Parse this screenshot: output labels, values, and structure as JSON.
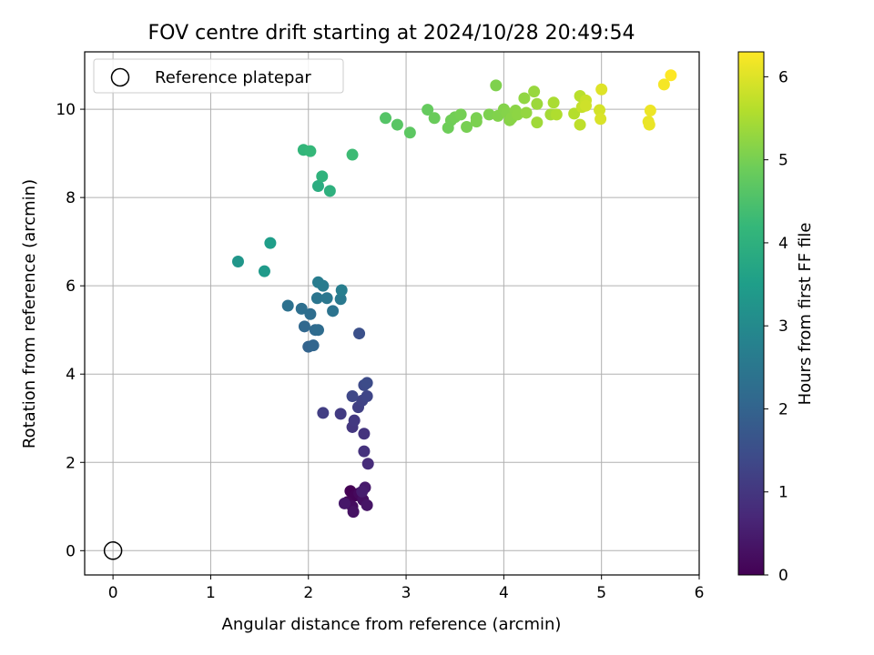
{
  "chart_data": {
    "type": "scatter",
    "title": "FOV centre drift starting at 2024/10/28 20:49:54",
    "xlabel": "Angular distance from reference (arcmin)",
    "ylabel": "Rotation from reference (arcmin)",
    "xlim": [
      -0.29,
      6.0
    ],
    "ylim": [
      -0.55,
      11.3
    ],
    "xticks": [
      "0",
      "1",
      "2",
      "3",
      "4",
      "5",
      "6"
    ],
    "yticks": [
      "0",
      "2",
      "4",
      "6",
      "8",
      "10"
    ],
    "grid": true,
    "legend": {
      "placement": "top-left",
      "entries": [
        "Reference platepar"
      ]
    },
    "reference": {
      "name": "Reference platepar",
      "x": 0,
      "y": 0
    },
    "colorbar": {
      "label": "Hours from first FF file",
      "range": [
        0,
        6.3
      ],
      "ticks": [
        "0",
        "1",
        "2",
        "3",
        "4",
        "5",
        "6"
      ],
      "colormap": "viridis"
    },
    "points": [
      {
        "x": 2.43,
        "y": 1.35,
        "c": 0.0
      },
      {
        "x": 2.48,
        "y": 1.25,
        "c": 0.05
      },
      {
        "x": 2.4,
        "y": 1.1,
        "c": 0.1
      },
      {
        "x": 2.52,
        "y": 1.3,
        "c": 0.15
      },
      {
        "x": 2.45,
        "y": 1.0,
        "c": 0.2
      },
      {
        "x": 2.56,
        "y": 1.15,
        "c": 0.25
      },
      {
        "x": 2.46,
        "y": 0.88,
        "c": 0.3
      },
      {
        "x": 2.6,
        "y": 1.03,
        "c": 0.35
      },
      {
        "x": 2.37,
        "y": 1.07,
        "c": 0.4
      },
      {
        "x": 2.58,
        "y": 1.43,
        "c": 0.45
      },
      {
        "x": 2.55,
        "y": 1.34,
        "c": 0.5
      },
      {
        "x": 2.61,
        "y": 1.97,
        "c": 0.8
      },
      {
        "x": 2.57,
        "y": 2.25,
        "c": 0.9
      },
      {
        "x": 2.57,
        "y": 2.65,
        "c": 0.95
      },
      {
        "x": 2.45,
        "y": 2.8,
        "c": 1.0
      },
      {
        "x": 2.47,
        "y": 2.95,
        "c": 1.05
      },
      {
        "x": 2.33,
        "y": 3.1,
        "c": 1.1
      },
      {
        "x": 2.15,
        "y": 3.12,
        "c": 1.15
      },
      {
        "x": 2.51,
        "y": 3.25,
        "c": 1.2
      },
      {
        "x": 2.55,
        "y": 3.4,
        "c": 1.25
      },
      {
        "x": 2.6,
        "y": 3.5,
        "c": 1.3
      },
      {
        "x": 2.45,
        "y": 3.5,
        "c": 1.35
      },
      {
        "x": 2.57,
        "y": 3.75,
        "c": 1.4
      },
      {
        "x": 2.6,
        "y": 3.8,
        "c": 1.45
      },
      {
        "x": 2.52,
        "y": 4.92,
        "c": 1.55
      },
      {
        "x": 2.0,
        "y": 4.62,
        "c": 2.0
      },
      {
        "x": 2.05,
        "y": 4.65,
        "c": 2.05
      },
      {
        "x": 1.96,
        "y": 5.08,
        "c": 2.1
      },
      {
        "x": 2.07,
        "y": 5.0,
        "c": 2.15
      },
      {
        "x": 2.1,
        "y": 5.0,
        "c": 2.2
      },
      {
        "x": 2.02,
        "y": 5.36,
        "c": 2.25
      },
      {
        "x": 1.93,
        "y": 5.48,
        "c": 2.3
      },
      {
        "x": 1.79,
        "y": 5.55,
        "c": 2.35
      },
      {
        "x": 2.25,
        "y": 5.43,
        "c": 2.4
      },
      {
        "x": 2.09,
        "y": 5.72,
        "c": 2.45
      },
      {
        "x": 2.19,
        "y": 5.72,
        "c": 2.5
      },
      {
        "x": 2.33,
        "y": 5.7,
        "c": 2.55
      },
      {
        "x": 2.15,
        "y": 6.0,
        "c": 2.6
      },
      {
        "x": 2.1,
        "y": 6.08,
        "c": 2.65
      },
      {
        "x": 2.34,
        "y": 5.9,
        "c": 2.7
      },
      {
        "x": 1.28,
        "y": 6.55,
        "c": 3.3
      },
      {
        "x": 1.55,
        "y": 6.33,
        "c": 3.4
      },
      {
        "x": 1.61,
        "y": 6.97,
        "c": 3.5
      },
      {
        "x": 2.1,
        "y": 8.26,
        "c": 3.9
      },
      {
        "x": 2.22,
        "y": 8.15,
        "c": 4.0
      },
      {
        "x": 2.14,
        "y": 8.48,
        "c": 4.05
      },
      {
        "x": 1.95,
        "y": 9.08,
        "c": 4.15
      },
      {
        "x": 2.02,
        "y": 9.05,
        "c": 4.2
      },
      {
        "x": 2.45,
        "y": 8.97,
        "c": 4.3
      },
      {
        "x": 2.79,
        "y": 9.8,
        "c": 4.6
      },
      {
        "x": 2.91,
        "y": 9.65,
        "c": 4.65
      },
      {
        "x": 3.04,
        "y": 9.47,
        "c": 4.7
      },
      {
        "x": 3.22,
        "y": 9.99,
        "c": 4.8
      },
      {
        "x": 3.29,
        "y": 9.8,
        "c": 4.85
      },
      {
        "x": 3.43,
        "y": 9.58,
        "c": 4.9
      },
      {
        "x": 3.46,
        "y": 9.75,
        "c": 4.92
      },
      {
        "x": 3.5,
        "y": 9.82,
        "c": 4.95
      },
      {
        "x": 3.56,
        "y": 9.88,
        "c": 4.98
      },
      {
        "x": 3.62,
        "y": 9.6,
        "c": 5.0
      },
      {
        "x": 3.72,
        "y": 9.8,
        "c": 5.02
      },
      {
        "x": 3.72,
        "y": 9.72,
        "c": 5.04
      },
      {
        "x": 3.85,
        "y": 9.88,
        "c": 5.06
      },
      {
        "x": 3.92,
        "y": 10.54,
        "c": 5.08
      },
      {
        "x": 3.94,
        "y": 9.85,
        "c": 5.1
      },
      {
        "x": 4.0,
        "y": 10.0,
        "c": 5.12
      },
      {
        "x": 4.03,
        "y": 9.92,
        "c": 5.14
      },
      {
        "x": 4.06,
        "y": 9.75,
        "c": 5.16
      },
      {
        "x": 4.08,
        "y": 9.8,
        "c": 5.18
      },
      {
        "x": 4.12,
        "y": 9.97,
        "c": 5.2
      },
      {
        "x": 4.14,
        "y": 9.88,
        "c": 5.22
      },
      {
        "x": 4.21,
        "y": 10.25,
        "c": 5.25
      },
      {
        "x": 4.23,
        "y": 9.92,
        "c": 5.28
      },
      {
        "x": 4.31,
        "y": 10.4,
        "c": 5.32
      },
      {
        "x": 4.34,
        "y": 10.12,
        "c": 5.36
      },
      {
        "x": 4.34,
        "y": 9.7,
        "c": 5.4
      },
      {
        "x": 4.48,
        "y": 9.88,
        "c": 5.45
      },
      {
        "x": 4.51,
        "y": 10.15,
        "c": 5.5
      },
      {
        "x": 4.54,
        "y": 9.88,
        "c": 5.55
      },
      {
        "x": 4.72,
        "y": 9.9,
        "c": 5.6
      },
      {
        "x": 4.78,
        "y": 10.3,
        "c": 5.65
      },
      {
        "x": 4.78,
        "y": 9.65,
        "c": 5.7
      },
      {
        "x": 4.8,
        "y": 10.05,
        "c": 5.75
      },
      {
        "x": 4.84,
        "y": 10.2,
        "c": 5.8
      },
      {
        "x": 4.84,
        "y": 10.08,
        "c": 5.85
      },
      {
        "x": 4.98,
        "y": 9.98,
        "c": 5.9
      },
      {
        "x": 4.99,
        "y": 9.78,
        "c": 5.95
      },
      {
        "x": 5.0,
        "y": 10.45,
        "c": 6.0
      },
      {
        "x": 5.48,
        "y": 9.72,
        "c": 6.1
      },
      {
        "x": 5.49,
        "y": 9.65,
        "c": 6.12
      },
      {
        "x": 5.5,
        "y": 9.97,
        "c": 6.15
      },
      {
        "x": 5.64,
        "y": 10.56,
        "c": 6.22
      },
      {
        "x": 5.71,
        "y": 10.77,
        "c": 6.3
      }
    ]
  }
}
